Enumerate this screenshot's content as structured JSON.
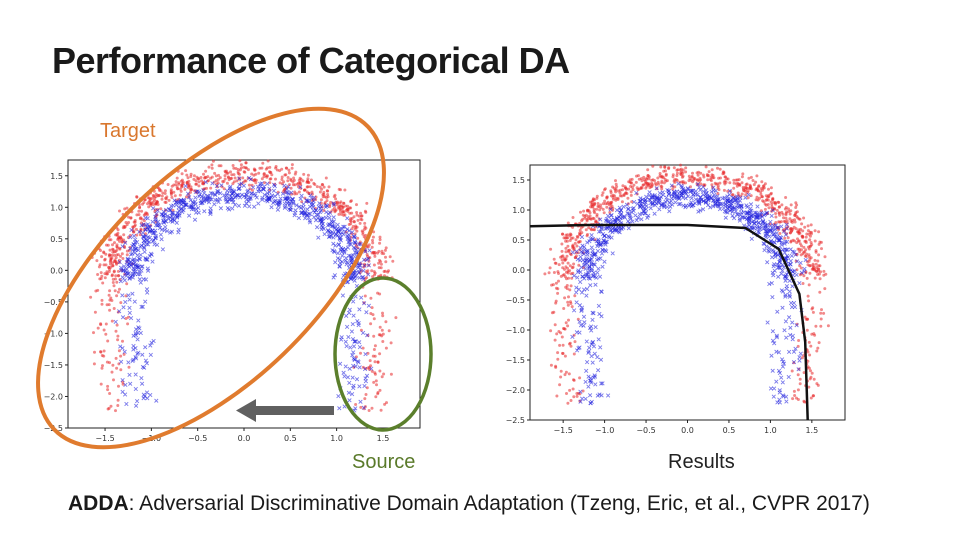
{
  "slide": {
    "title": "Performance of Categorical DA",
    "target_label": "Target",
    "source_label": "Source",
    "results_label": "Results",
    "citation_abbr": "ADDA",
    "citation_text": ": Adversarial Discriminative Domain Adaptation (Tzeng, Eric, et al., CVPR 2017)"
  },
  "colors": {
    "target_ellipse": "#e07b2e",
    "source_ellipse": "#5b7f2c",
    "arrow": "#606060",
    "red_points": "#e8282a",
    "blue_points": "#2222dd",
    "boundary": "#111111"
  },
  "chart_data": [
    {
      "type": "scatter",
      "name": "before-adaptation",
      "xlim": [
        -1.9,
        1.9
      ],
      "ylim": [
        -2.5,
        1.75
      ],
      "x_ticks": [
        "−1.5",
        "−1.0",
        "−0.5",
        "0.0",
        "0.5",
        "1.0",
        "1.5"
      ],
      "y_ticks": [
        "1.5",
        "1.0",
        "0.5",
        "0.0",
        "−0.5",
        "−1.0",
        "−1.5",
        "−2.0",
        "−2.5"
      ],
      "series": [
        {
          "name": "red-class",
          "marker": "dot",
          "shape": "arc",
          "radius": 1.45,
          "center": [
            0,
            -0.15
          ],
          "y_min": -2.3
        },
        {
          "name": "blue-class",
          "marker": "x",
          "shape": "arc",
          "radius": 1.2,
          "center": [
            0,
            -0.15
          ],
          "y_min": -2.3
        }
      ]
    },
    {
      "type": "scatter",
      "name": "after-adaptation",
      "xlim": [
        -1.9,
        1.9
      ],
      "ylim": [
        -2.5,
        1.75
      ],
      "x_ticks": [
        "−1.5",
        "−1.0",
        "−0.5",
        "0.0",
        "0.5",
        "1.0",
        "1.5"
      ],
      "y_ticks": [
        "1.5",
        "1.0",
        "0.5",
        "0.0",
        "−0.5",
        "−1.0",
        "−1.5",
        "−2.0",
        "−2.5"
      ],
      "series": [
        {
          "name": "red-class",
          "marker": "dot",
          "shape": "arc",
          "radius": 1.5,
          "center": [
            0,
            -0.15
          ],
          "y_min": -2.3
        },
        {
          "name": "blue-class",
          "marker": "x",
          "shape": "arc",
          "radius": 1.2,
          "center": [
            0,
            -0.15
          ],
          "y_min": -2.3
        }
      ],
      "decision_boundary": [
        [
          -1.9,
          0.73
        ],
        [
          -1.2,
          0.75
        ],
        [
          0.0,
          0.75
        ],
        [
          0.7,
          0.7
        ],
        [
          1.1,
          0.35
        ],
        [
          1.35,
          -0.4
        ],
        [
          1.42,
          -1.2
        ],
        [
          1.45,
          -2.5
        ]
      ]
    }
  ]
}
